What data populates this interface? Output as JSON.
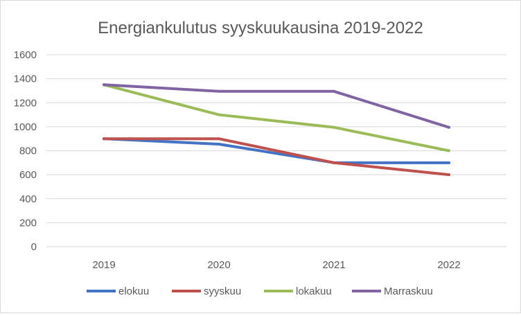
{
  "chart_data": {
    "type": "line",
    "title": "Energiankulutus syyskuukausina 2019-2022",
    "categories": [
      "2019",
      "2020",
      "2021",
      "2022"
    ],
    "yticks": [
      "0",
      "200",
      "400",
      "600",
      "800",
      "1000",
      "1200",
      "1400",
      "1600"
    ],
    "ylim": [
      0,
      1600
    ],
    "grid": true,
    "legend_position": "bottom",
    "series": [
      {
        "name": "elokuu",
        "color": "#4472C4",
        "values": [
          900,
          855,
          700,
          700
        ]
      },
      {
        "name": "syyskuu",
        "color": "#C0504D",
        "values": [
          900,
          900,
          700,
          600
        ]
      },
      {
        "name": "lokakuu",
        "color": "#9BBB59",
        "values": [
          1350,
          1100,
          995,
          800
        ]
      },
      {
        "name": "Marraskuu",
        "color": "#8064A2",
        "values": [
          1350,
          1295,
          1295,
          995
        ]
      }
    ]
  }
}
